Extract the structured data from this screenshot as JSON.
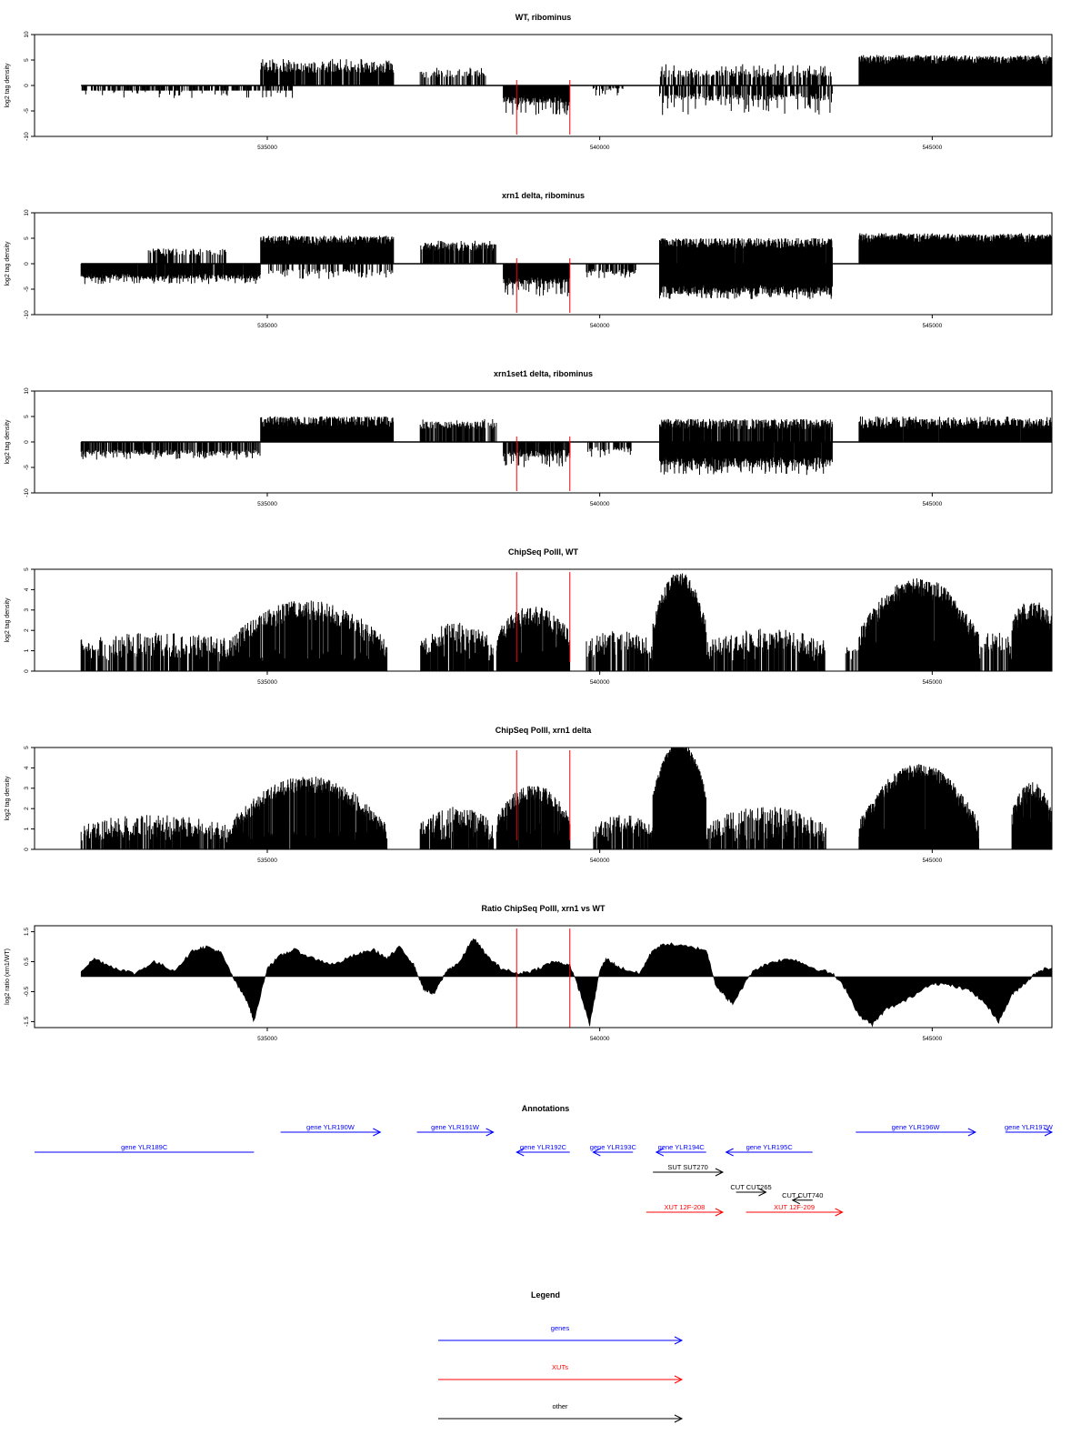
{
  "chart_data": [
    {
      "type": "bar",
      "title": "WT, ribominus",
      "ylabel": "log2 tag density",
      "ylim": [
        -10,
        10
      ],
      "yticks": [
        "10",
        "5",
        "0",
        "-5",
        "-10"
      ],
      "xlim": [
        531500,
        546800
      ],
      "xticks": [
        "535000",
        "540000",
        "545000"
      ],
      "markers": [
        538750,
        539550
      ],
      "segments": [
        {
          "from": 532200,
          "to": 535400,
          "base": 1,
          "noise": 0,
          "dir": "down",
          "amp": 2.5,
          "density": 0.8,
          "step": 14
        },
        {
          "from": 534900,
          "to": 536900,
          "base": 2.5,
          "noise": 2,
          "dir": "up",
          "amp": 5.2,
          "density": 0.9,
          "step": 10
        },
        {
          "from": 537300,
          "to": 538300,
          "base": 1.5,
          "noise": 1.5,
          "dir": "up",
          "amp": 3.5,
          "density": 0.65,
          "step": 10
        },
        {
          "from": 538550,
          "to": 539550,
          "base": 2,
          "noise": 1.5,
          "dir": "down",
          "amp": 6,
          "density": 1.0,
          "step": 7
        },
        {
          "from": 539900,
          "to": 540350,
          "base": 0.5,
          "noise": 0.5,
          "dir": "down",
          "amp": 2,
          "density": 0.5,
          "step": 14
        },
        {
          "from": 540900,
          "to": 543500,
          "base": 1.5,
          "noise": 1.5,
          "dir": "up",
          "amp": 4.2,
          "density": 0.7,
          "step": 12
        },
        {
          "from": 540900,
          "to": 543500,
          "base": 1.5,
          "noise": 1.5,
          "dir": "down",
          "amp": 5.8,
          "density": 0.75,
          "step": 11
        },
        {
          "from": 543900,
          "to": 546800,
          "base": 4,
          "noise": 2,
          "dir": "up",
          "amp": 5.6,
          "density": 1.0,
          "step": 6
        }
      ]
    },
    {
      "type": "bar",
      "title": "xrn1 delta, ribominus",
      "ylabel": "log2 tag density",
      "ylim": [
        -10,
        10
      ],
      "yticks": [
        "10",
        "5",
        "0",
        "-5",
        "-10"
      ],
      "xlim": [
        531500,
        546800
      ],
      "xticks": [
        "535000",
        "540000",
        "545000"
      ],
      "markers": [
        538750,
        539550
      ],
      "segments": [
        {
          "from": 532200,
          "to": 534900,
          "base": 2,
          "noise": 1,
          "dir": "down",
          "amp": 4,
          "density": 0.95,
          "step": 7
        },
        {
          "from": 533200,
          "to": 534400,
          "base": 1.5,
          "noise": 1.5,
          "dir": "up",
          "amp": 3,
          "density": 0.6,
          "step": 12
        },
        {
          "from": 534900,
          "to": 536900,
          "base": 3.5,
          "noise": 2,
          "dir": "up",
          "amp": 5.3,
          "density": 1.0,
          "step": 6
        },
        {
          "from": 535000,
          "to": 536900,
          "base": 1,
          "noise": 1,
          "dir": "down",
          "amp": 3,
          "density": 0.55,
          "step": 12
        },
        {
          "from": 537300,
          "to": 538450,
          "base": 2.5,
          "noise": 1.5,
          "dir": "up",
          "amp": 4.5,
          "density": 0.85,
          "step": 8
        },
        {
          "from": 538550,
          "to": 539550,
          "base": 2.5,
          "noise": 1.5,
          "dir": "down",
          "amp": 6.5,
          "density": 1.0,
          "step": 6
        },
        {
          "from": 539800,
          "to": 540550,
          "base": 1,
          "noise": 1,
          "dir": "down",
          "amp": 3,
          "density": 0.65,
          "step": 10
        },
        {
          "from": 540900,
          "to": 543500,
          "base": 3,
          "noise": 2,
          "dir": "up",
          "amp": 5,
          "density": 0.95,
          "step": 7
        },
        {
          "from": 540900,
          "to": 543500,
          "base": 4,
          "noise": 2,
          "dir": "down",
          "amp": 7,
          "density": 1.0,
          "step": 6
        },
        {
          "from": 543900,
          "to": 546800,
          "base": 4,
          "noise": 2,
          "dir": "up",
          "amp": 5.6,
          "density": 1.0,
          "step": 6
        }
      ]
    },
    {
      "type": "bar",
      "title": "xrn1set1 delta, ribominus",
      "ylabel": "log2 tag density",
      "ylim": [
        -10,
        10
      ],
      "yticks": [
        "10",
        "5",
        "0",
        "-5",
        "-10"
      ],
      "xlim": [
        531500,
        546800
      ],
      "xticks": [
        "535000",
        "540000",
        "545000"
      ],
      "markers": [
        538750,
        539550
      ],
      "segments": [
        {
          "from": 532200,
          "to": 534900,
          "base": 1.5,
          "noise": 1,
          "dir": "down",
          "amp": 3.5,
          "density": 0.8,
          "step": 9
        },
        {
          "from": 534900,
          "to": 536900,
          "base": 3,
          "noise": 2,
          "dir": "up",
          "amp": 5,
          "density": 0.95,
          "step": 7
        },
        {
          "from": 537300,
          "to": 538450,
          "base": 2.5,
          "noise": 1.5,
          "dir": "up",
          "amp": 4.5,
          "density": 0.8,
          "step": 8
        },
        {
          "from": 538550,
          "to": 539550,
          "base": 1.5,
          "noise": 1.5,
          "dir": "down",
          "amp": 5,
          "density": 0.9,
          "step": 8
        },
        {
          "from": 539800,
          "to": 540500,
          "base": 1,
          "noise": 1,
          "dir": "down",
          "amp": 3,
          "density": 0.6,
          "step": 11
        },
        {
          "from": 540900,
          "to": 543500,
          "base": 2.5,
          "noise": 2,
          "dir": "up",
          "amp": 4.5,
          "density": 0.9,
          "step": 8
        },
        {
          "from": 540900,
          "to": 543500,
          "base": 3,
          "noise": 2,
          "dir": "down",
          "amp": 6.5,
          "density": 0.95,
          "step": 7
        },
        {
          "from": 543900,
          "to": 546800,
          "base": 2.5,
          "noise": 2,
          "dir": "up",
          "amp": 5,
          "density": 0.95,
          "step": 7
        }
      ]
    },
    {
      "type": "bar",
      "title": "ChipSeq PolII, WT",
      "ylabel": "log2 tag density",
      "ylim": [
        0,
        5
      ],
      "yticks": [
        "5",
        "4",
        "3",
        "2",
        "1",
        "0"
      ],
      "xlim": [
        531500,
        546800
      ],
      "xticks": [
        "535000",
        "540000",
        "545000"
      ],
      "markers": [
        538750,
        539550
      ],
      "domes": [
        {
          "from": 532200,
          "to": 534400,
          "peak": 1.3,
          "floor": 1.0,
          "noise": 0.6,
          "density": 0.7,
          "step": 7
        },
        {
          "from": 534400,
          "to": 536800,
          "peak": 3.0,
          "floor": 1.0,
          "noise": 0.5,
          "density": 0.95,
          "step": 6
        },
        {
          "from": 537300,
          "to": 538400,
          "peak": 1.9,
          "floor": 1.0,
          "noise": 0.5,
          "density": 0.85,
          "step": 7
        },
        {
          "from": 538450,
          "to": 539550,
          "peak": 2.7,
          "floor": 1.5,
          "noise": 0.5,
          "density": 0.95,
          "step": 6
        },
        {
          "from": 539800,
          "to": 540800,
          "peak": 1.5,
          "floor": 1.0,
          "noise": 0.5,
          "density": 0.7,
          "step": 7
        },
        {
          "from": 540800,
          "to": 541600,
          "peak": 4.5,
          "floor": 2.0,
          "noise": 0.4,
          "density": 1.0,
          "step": 4
        },
        {
          "from": 541600,
          "to": 543400,
          "peak": 1.6,
          "floor": 1.0,
          "noise": 0.5,
          "density": 0.75,
          "step": 7
        },
        {
          "from": 543700,
          "to": 543900,
          "peak": 1.0,
          "floor": 1.0,
          "noise": 0.3,
          "density": 0.5,
          "step": 9
        },
        {
          "from": 543900,
          "to": 545700,
          "peak": 4.1,
          "floor": 1.5,
          "noise": 0.5,
          "density": 1.0,
          "step": 4
        },
        {
          "from": 545700,
          "to": 546200,
          "peak": 1.5,
          "floor": 1.0,
          "noise": 0.5,
          "density": 0.6,
          "step": 8
        },
        {
          "from": 546200,
          "to": 546800,
          "peak": 3.0,
          "floor": 2.2,
          "noise": 0.5,
          "density": 1.0,
          "step": 5
        }
      ]
    },
    {
      "type": "bar",
      "title": "ChipSeq PolII, xrn1 delta",
      "ylabel": "log2 tag density",
      "ylim": [
        0,
        5
      ],
      "yticks": [
        "5",
        "4",
        "3",
        "2",
        "1",
        "0"
      ],
      "xlim": [
        531500,
        546800
      ],
      "xticks": [
        "535000",
        "540000",
        "545000"
      ],
      "markers": [
        538750,
        539550
      ],
      "domes": [
        {
          "from": 532200,
          "to": 534400,
          "peak": 1.2,
          "floor": 0.8,
          "noise": 0.5,
          "density": 0.7,
          "step": 7
        },
        {
          "from": 534400,
          "to": 536800,
          "peak": 3.2,
          "floor": 0.8,
          "noise": 0.4,
          "density": 0.95,
          "step": 5
        },
        {
          "from": 537300,
          "to": 538400,
          "peak": 1.6,
          "floor": 0.8,
          "noise": 0.5,
          "density": 0.85,
          "step": 7
        },
        {
          "from": 538450,
          "to": 539550,
          "peak": 2.8,
          "floor": 1.2,
          "noise": 0.4,
          "density": 0.95,
          "step": 5
        },
        {
          "from": 539900,
          "to": 540800,
          "peak": 1.3,
          "floor": 0.8,
          "noise": 0.4,
          "density": 0.7,
          "step": 7
        },
        {
          "from": 540800,
          "to": 541600,
          "peak": 5.0,
          "floor": 2.5,
          "noise": 0.3,
          "density": 1.0,
          "step": 3
        },
        {
          "from": 541600,
          "to": 543400,
          "peak": 1.6,
          "floor": 0.8,
          "noise": 0.5,
          "density": 0.75,
          "step": 7
        },
        {
          "from": 543900,
          "to": 545700,
          "peak": 3.8,
          "floor": 1.0,
          "noise": 0.4,
          "density": 1.0,
          "step": 4
        },
        {
          "from": 546200,
          "to": 546800,
          "peak": 2.8,
          "floor": 1.5,
          "noise": 0.5,
          "density": 1.0,
          "step": 5
        }
      ]
    },
    {
      "type": "area",
      "title": "Ratio ChipSeq PolII, xrn1 vs WT",
      "ylabel": "log2 ratio (xrn1/WT)",
      "ylim": [
        -1.7,
        1.7
      ],
      "yticks": [
        "1.5",
        "0.5",
        "-0.5",
        "-1.5"
      ],
      "ytick_values": [
        1.5,
        0.5,
        -0.5,
        -1.5
      ],
      "xlim": [
        531500,
        546800
      ],
      "xticks": [
        "535000",
        "540000",
        "545000"
      ],
      "markers": [
        538750,
        539550
      ],
      "x": [
        532200,
        532400,
        532700,
        533000,
        533300,
        533600,
        533900,
        534100,
        534300,
        534550,
        534700,
        534800,
        535000,
        535200,
        535400,
        535700,
        536000,
        536300,
        536600,
        536800,
        537000,
        537200,
        537350,
        537500,
        537700,
        537900,
        538100,
        538300,
        538500,
        538750,
        539000,
        539300,
        539550,
        539700,
        539850,
        540000,
        540100,
        540300,
        540600,
        540800,
        541000,
        541300,
        541600,
        541750,
        541900,
        542000,
        542300,
        542600,
        542900,
        543200,
        543500,
        543700,
        543900,
        544100,
        544300,
        544600,
        545000,
        545300,
        545600,
        545800,
        546000,
        546200,
        546400,
        546600,
        546800
      ],
      "values": [
        0.2,
        0.6,
        0.3,
        0.1,
        0.5,
        0.2,
        0.9,
        1.0,
        0.8,
        -0.3,
        -0.8,
        -1.5,
        0.3,
        0.7,
        0.9,
        0.6,
        0.4,
        0.7,
        0.9,
        0.6,
        1.0,
        0.4,
        -0.4,
        -0.6,
        0.2,
        0.5,
        1.3,
        0.7,
        0.3,
        0.1,
        0.2,
        0.5,
        0.4,
        -0.5,
        -1.6,
        0.2,
        0.6,
        0.3,
        0.1,
        0.9,
        1.1,
        1.0,
        0.9,
        -0.3,
        -0.7,
        -0.9,
        0.2,
        0.5,
        0.6,
        0.3,
        0.1,
        -0.4,
        -1.3,
        -1.6,
        -1.1,
        -0.8,
        -0.2,
        -0.3,
        -0.5,
        -0.9,
        -1.5,
        -0.6,
        -0.2,
        0.2,
        0.3
      ]
    }
  ],
  "annotations": {
    "title": "Annotations",
    "xlim": [
      531500,
      546800
    ],
    "items": [
      {
        "label": "gene YLR189C",
        "start": 531500,
        "end": 534800,
        "strand": "-",
        "kind": "gene",
        "row": 0
      },
      {
        "label": "gene YLR190W",
        "start": 535200,
        "end": 536700,
        "strand": "+",
        "kind": "gene",
        "row": -1
      },
      {
        "label": "gene YLR191W",
        "start": 537250,
        "end": 538400,
        "strand": "+",
        "kind": "gene",
        "row": -1
      },
      {
        "label": "gene YLR192C",
        "start": 538750,
        "end": 539550,
        "strand": "-",
        "kind": "gene",
        "row": 0
      },
      {
        "label": "gene YLR193C",
        "start": 539900,
        "end": 540500,
        "strand": "-",
        "kind": "gene",
        "row": 0
      },
      {
        "label": "gene YLR194C",
        "start": 540850,
        "end": 541600,
        "strand": "-",
        "kind": "gene",
        "row": 0
      },
      {
        "label": "gene YLR195C",
        "start": 541900,
        "end": 543200,
        "strand": "-",
        "kind": "gene",
        "row": 0
      },
      {
        "label": "gene YLR196W",
        "start": 543850,
        "end": 545650,
        "strand": "+",
        "kind": "gene",
        "row": -1
      },
      {
        "label": "gene YLR197W",
        "start": 546100,
        "end": 546800,
        "strand": "+",
        "kind": "gene",
        "row": -1
      },
      {
        "label": "SUT SUT270",
        "start": 540800,
        "end": 541850,
        "strand": "+",
        "kind": "other",
        "row": 1
      },
      {
        "label": "CUT CUT265",
        "start": 542050,
        "end": 542500,
        "strand": "+",
        "kind": "other",
        "row": 2
      },
      {
        "label": "CUT CUT740",
        "start": 542900,
        "end": 543200,
        "strand": "-",
        "kind": "other",
        "row": 2.4
      },
      {
        "label": "XUT 12F-208",
        "start": 540700,
        "end": 541850,
        "strand": "+",
        "kind": "xut",
        "row": 3
      },
      {
        "label": "XUT 12F-209",
        "start": 542200,
        "end": 543650,
        "strand": "+",
        "kind": "xut",
        "row": 3
      }
    ]
  },
  "legend": {
    "title": "Legend",
    "items": [
      {
        "label": "genes",
        "color": "#0000ff"
      },
      {
        "label": "XUTs",
        "color": "#ff0000"
      },
      {
        "label": "other",
        "color": "#000000"
      }
    ]
  },
  "colors": {
    "gene": "#0000ff",
    "xut": "#ff0000",
    "other": "#000000",
    "marker": "#ff0000",
    "bars": "#000000"
  }
}
